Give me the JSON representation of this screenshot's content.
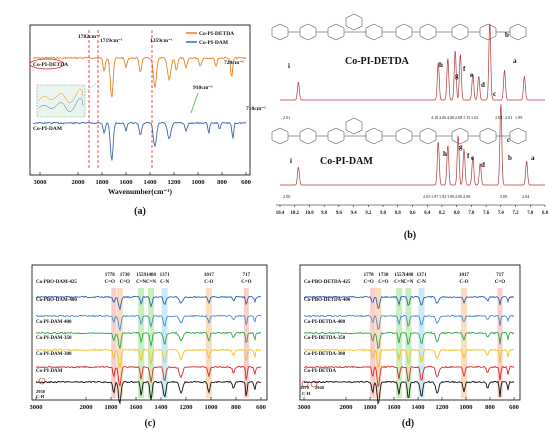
{
  "panels": [
    {
      "letter": "(a)",
      "xlabel": "Wavenumber(cm⁻¹)",
      "ticks": [
        3000,
        2000,
        1800,
        1600,
        1400,
        1200,
        1000,
        800,
        600
      ],
      "series": [
        {
          "name": "Co-PI-DETDA",
          "color": "#e8831d"
        },
        {
          "name": "Co-PI-DAM",
          "color": "#3b67b3"
        }
      ],
      "annotations": [
        "1782cm⁻¹",
        "1719cm⁻¹",
        "1359cm⁻¹",
        "720cm⁻¹",
        "910cm⁻¹",
        "710cm⁻¹"
      ]
    },
    {
      "letter": "(b)",
      "titles": [
        "Co-PI-DETDA",
        "Co-PI-DAM"
      ],
      "ticks": [
        "10.4",
        "10.2",
        "10.0",
        "9.8",
        "9.6",
        "9.4",
        "9.2",
        "9.0",
        "8.8",
        "8.6",
        "8.4",
        "8.2",
        "8.0",
        "7.8",
        "7.6",
        "7.4",
        "7.2",
        "7.0",
        "6.8"
      ],
      "peak_labels_top": [
        "i",
        "h",
        "g",
        "f",
        "e",
        "d",
        "c",
        "b",
        "a"
      ],
      "peak_labels_bottom": [
        "i",
        "h",
        "g",
        "f",
        "e",
        "d",
        "c",
        "b",
        "a"
      ],
      "integrals_top": [
        "2.01",
        "4.18",
        "4.06",
        "4.00",
        "2.08",
        "1.15",
        "1.02",
        "2.04",
        "2.01",
        "1.99"
      ],
      "integrals_bottom": [
        "2.00",
        "2.03",
        "1.97",
        "1.92",
        "1.99",
        "2.00",
        "2.08",
        "5.09",
        "2.04"
      ]
    },
    {
      "letter": "(c)",
      "ticks": [
        3000,
        2000,
        1800,
        1600,
        1400,
        1200,
        1000,
        800,
        600
      ],
      "band_labels": [
        {
          "text": "1778",
          "sub": "C=O"
        },
        {
          "text": "1730",
          "sub": "C=O"
        },
        {
          "text": "1559",
          "sub": "C=N"
        },
        {
          "text": "1480",
          "sub": "C=N"
        },
        {
          "text": "1371",
          "sub": "C-N"
        },
        {
          "text": "1017",
          "sub": "C-O"
        },
        {
          "text": "717",
          "sub": "C=O"
        }
      ],
      "series": [
        {
          "name": "Co-PBO-DAM-425",
          "color": "#2a62b8"
        },
        {
          "name": "Co-PBO-DAM-400",
          "color": "#4a8bd1"
        },
        {
          "name": "Co-PI-DAM-400",
          "color": "#2aa84a"
        },
        {
          "name": "Co-PI-DAM-350",
          "color": "#f0c21a"
        },
        {
          "name": "Co-PI-DAM-300",
          "color": "#d62828"
        },
        {
          "name": "Co-PI-DAM",
          "color": "#111111"
        }
      ],
      "extra": [
        "2930",
        "C-H"
      ]
    },
    {
      "letter": "(d)",
      "ticks": [
        3000,
        2000,
        1800,
        1600,
        1400,
        1200,
        1000,
        800,
        600
      ],
      "band_labels": [
        {
          "text": "1778",
          "sub": "C=O"
        },
        {
          "text": "1730",
          "sub": "C=O"
        },
        {
          "text": "1557",
          "sub": "C=N"
        },
        {
          "text": "1480",
          "sub": "C=N"
        },
        {
          "text": "1371",
          "sub": "C-N"
        },
        {
          "text": "1017",
          "sub": "C-O"
        },
        {
          "text": "717",
          "sub": "C=O"
        }
      ],
      "series": [
        {
          "name": "Co-PBO-DETDA-425",
          "color": "#2a62b8"
        },
        {
          "name": "Co-PBO-DETDA-400",
          "color": "#4a8bd1"
        },
        {
          "name": "Co-PI-DETDA-400",
          "color": "#2aa84a"
        },
        {
          "name": "Co-PI-DETDA-350",
          "color": "#f0c21a"
        },
        {
          "name": "Co-PI-DETDA-300",
          "color": "#d62828"
        },
        {
          "name": "Co-PI-DETDA",
          "color": "#111111"
        }
      ],
      "extra": [
        "2970",
        "2940",
        "C-H"
      ]
    }
  ],
  "chart_data": [
    {
      "type": "line",
      "xlabel": "Wavenumber(cm⁻¹)",
      "x_reversed": true,
      "xlim": [
        3000,
        600
      ],
      "series": [
        {
          "name": "Co-PI-DETDA",
          "peaks": [
            1782,
            1719,
            1359,
            720
          ]
        },
        {
          "name": "Co-PI-DAM",
          "peaks": [
            1782,
            1719,
            1359,
            910,
            710
          ]
        }
      ]
    },
    {
      "type": "line",
      "x_reversed": true,
      "xlim": [
        10.4,
        6.8
      ],
      "series": [
        {
          "name": "Co-PI-DETDA",
          "peaks": [
            10.15,
            8.25,
            8.12,
            8.02,
            7.95,
            7.78,
            7.7,
            7.55,
            7.35,
            7.08
          ]
        },
        {
          "name": "Co-PI-DAM",
          "peaks": [
            10.15,
            8.25,
            8.12,
            7.98,
            7.9,
            7.78,
            7.68,
            7.4,
            7.05
          ]
        }
      ]
    },
    {
      "type": "line",
      "x_reversed": true,
      "xlim": [
        3000,
        600
      ],
      "bands": [
        1778,
        1730,
        1559,
        1480,
        1371,
        1017,
        717
      ],
      "series": [
        {
          "name": "Co-PBO-DAM-425"
        },
        {
          "name": "Co-PBO-DAM-400"
        },
        {
          "name": "Co-PI-DAM-400"
        },
        {
          "name": "Co-PI-DAM-350"
        },
        {
          "name": "Co-PI-DAM-300"
        },
        {
          "name": "Co-PI-DAM"
        }
      ]
    },
    {
      "type": "line",
      "x_reversed": true,
      "xlim": [
        3000,
        600
      ],
      "bands": [
        1778,
        1730,
        1557,
        1480,
        1371,
        1017,
        717
      ],
      "series": [
        {
          "name": "Co-PBO-DETDA-425"
        },
        {
          "name": "Co-PBO-DETDA-400"
        },
        {
          "name": "Co-PI-DETDA-400"
        },
        {
          "name": "Co-PI-DETDA-350"
        },
        {
          "name": "Co-PI-DETDA-300"
        },
        {
          "name": "Co-PI-DETDA"
        }
      ]
    }
  ]
}
